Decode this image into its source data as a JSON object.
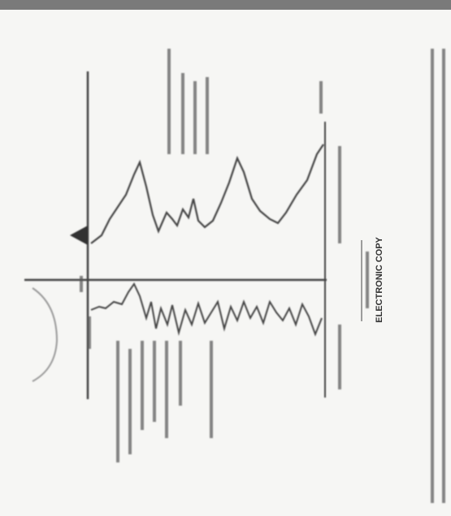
{
  "document": {
    "stamp": "ELECTRONIC COPY"
  }
}
